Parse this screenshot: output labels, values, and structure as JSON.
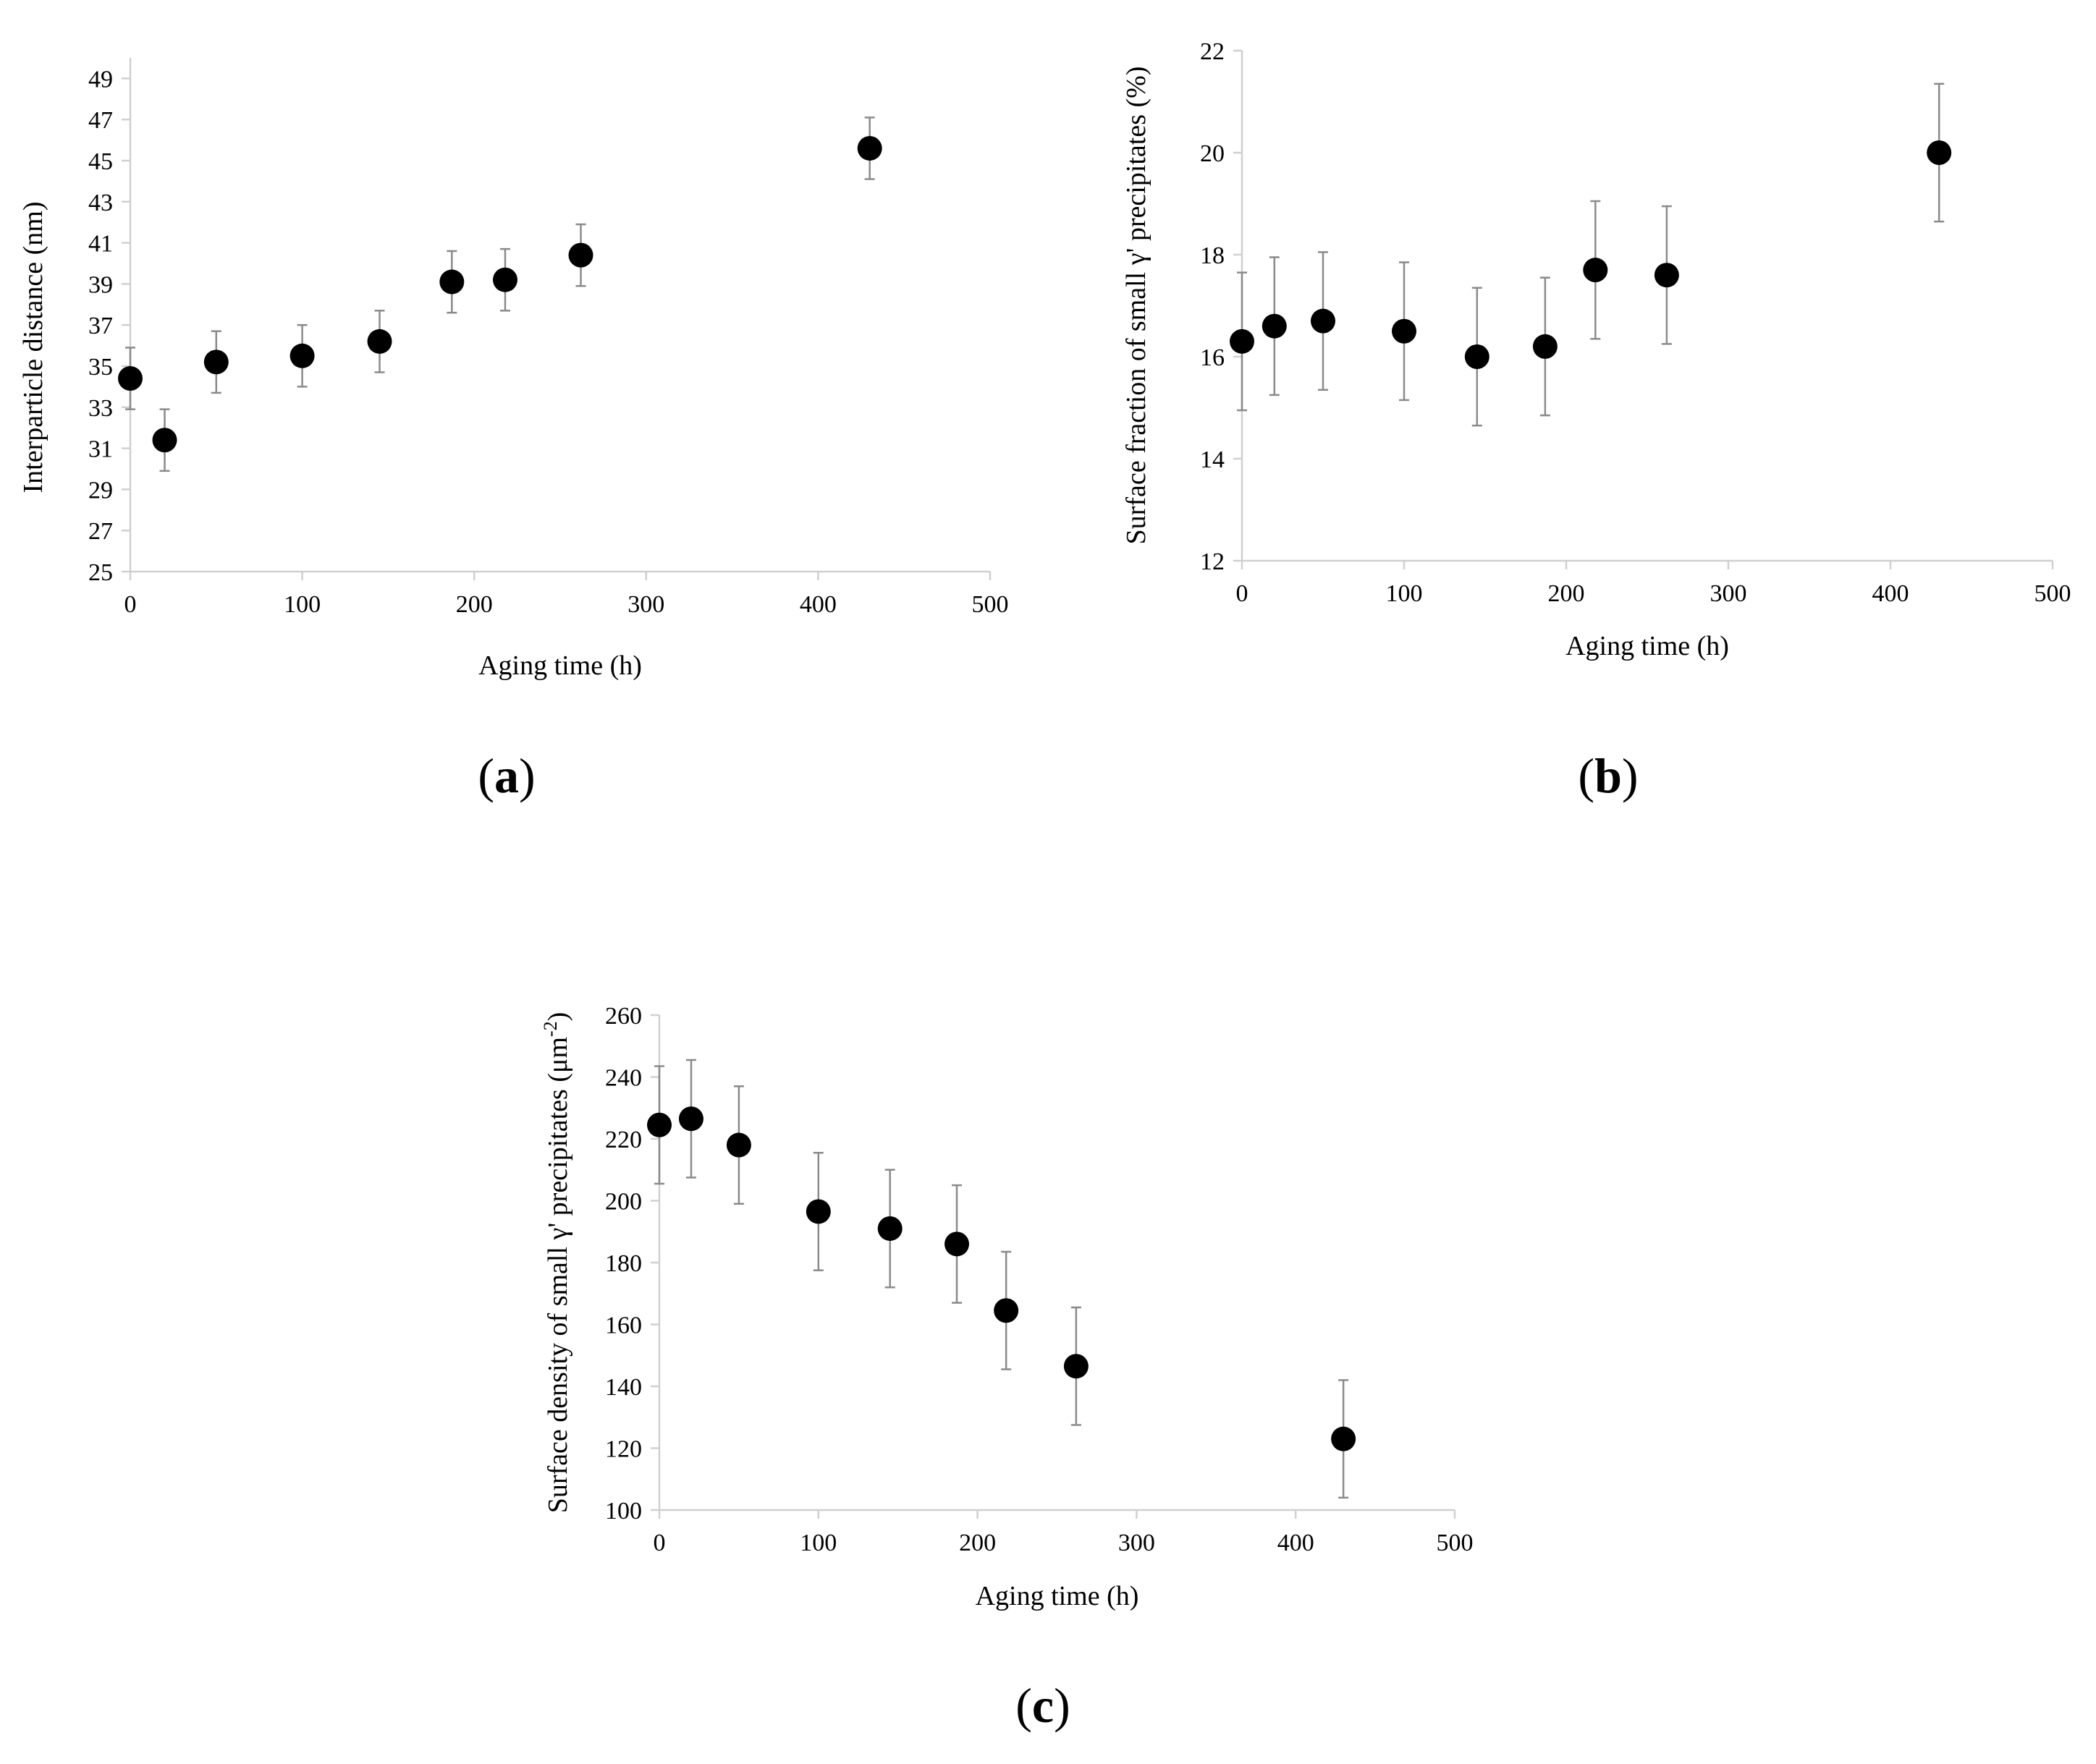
{
  "chart_data": [
    {
      "type": "scatter",
      "panel_label": [
        "(",
        "a",
        ")"
      ],
      "xlabel": "Aging time (h)",
      "ylabel": "Interparticle distance (nm)",
      "xlim": [
        0,
        500
      ],
      "ylim": [
        25,
        50
      ],
      "xticks": [
        0,
        100,
        200,
        300,
        400,
        500
      ],
      "yticks": [
        25,
        27,
        29,
        31,
        33,
        35,
        37,
        39,
        41,
        43,
        45,
        47,
        49
      ],
      "grid": false,
      "series": [
        {
          "name": "Interparticle distance",
          "x": [
            0,
            20,
            50,
            100,
            145,
            187,
            218,
            262,
            430
          ],
          "y": [
            34.4,
            31.4,
            35.2,
            35.5,
            36.2,
            39.1,
            39.2,
            40.4,
            45.6
          ],
          "error": [
            1.5,
            1.5,
            1.5,
            1.5,
            1.5,
            1.5,
            1.5,
            1.5,
            1.5
          ]
        }
      ]
    },
    {
      "type": "scatter",
      "panel_label": [
        "(",
        "b",
        ")"
      ],
      "xlabel": "Aging time (h)",
      "ylabel": "Surface fraction of small γ' precipitates (%)",
      "xlim": [
        0,
        500
      ],
      "ylim": [
        12,
        22
      ],
      "xticks": [
        0,
        100,
        200,
        300,
        400,
        500
      ],
      "yticks": [
        12,
        14,
        16,
        18,
        20,
        22
      ],
      "grid": false,
      "series": [
        {
          "name": "Surface fraction",
          "x": [
            0,
            20,
            50,
            100,
            145,
            187,
            218,
            262,
            430
          ],
          "y": [
            16.3,
            16.6,
            16.7,
            16.5,
            16.0,
            16.2,
            17.7,
            17.6,
            20.0
          ],
          "error": [
            1.35,
            1.35,
            1.35,
            1.35,
            1.35,
            1.35,
            1.35,
            1.35,
            1.35
          ]
        }
      ]
    },
    {
      "type": "scatter",
      "panel_label": [
        "(",
        "c",
        ")"
      ],
      "xlabel": "Aging time (h)",
      "ylabel": "Surface density of small γ' precipitates (μm",
      "ylabel_sup": "-2",
      "ylabel_end": ")",
      "xlim": [
        0,
        500
      ],
      "ylim": [
        100,
        260
      ],
      "xticks": [
        0,
        100,
        200,
        300,
        400,
        500
      ],
      "yticks": [
        100,
        120,
        140,
        160,
        180,
        200,
        220,
        240,
        260
      ],
      "grid": false,
      "series": [
        {
          "name": "Surface density",
          "x": [
            0,
            20,
            50,
            100,
            145,
            187,
            218,
            262,
            430
          ],
          "y": [
            224.5,
            226.5,
            218,
            196.5,
            191,
            186,
            164.5,
            146.5,
            123
          ],
          "error": [
            19,
            19,
            19,
            19,
            19,
            19,
            19,
            19,
            19
          ]
        }
      ]
    }
  ]
}
